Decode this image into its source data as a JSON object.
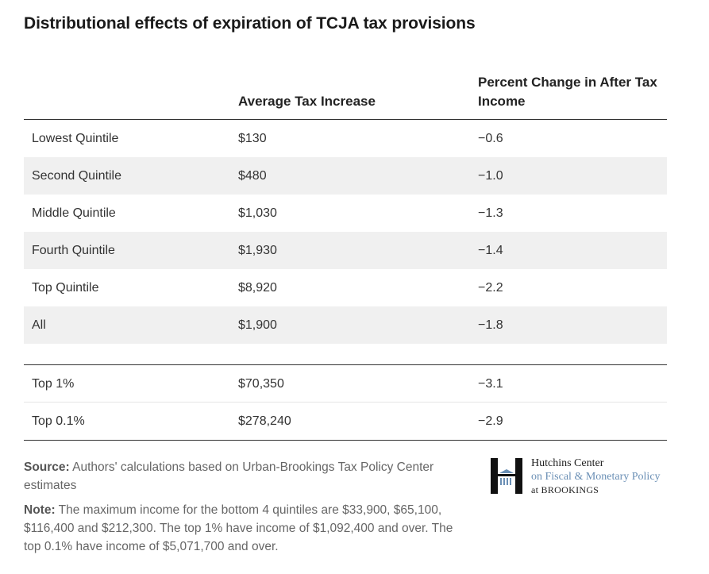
{
  "title": "Distributional effects of expiration of TCJA tax provisions",
  "chart_data": {
    "type": "table",
    "title": "Distributional effects of expiration of TCJA tax provisions",
    "columns": [
      "",
      "Average Tax Increase",
      "Percent Change in After Tax Income"
    ],
    "rows": [
      {
        "group": "Lowest Quintile",
        "avg_tax_increase": "$130",
        "pct_change": "−0.6"
      },
      {
        "group": "Second Quintile",
        "avg_tax_increase": "$480",
        "pct_change": "−1.0"
      },
      {
        "group": "Middle Quintile",
        "avg_tax_increase": "$1,030",
        "pct_change": "−1.3"
      },
      {
        "group": "Fourth Quintile",
        "avg_tax_increase": "$1,930",
        "pct_change": "−1.4"
      },
      {
        "group": "Top Quintile",
        "avg_tax_increase": "$8,920",
        "pct_change": "−2.2"
      },
      {
        "group": "All",
        "avg_tax_increase": "$1,900",
        "pct_change": "−1.8"
      }
    ],
    "rows_top": [
      {
        "group": "Top 1%",
        "avg_tax_increase": "$70,350",
        "pct_change": "−3.1"
      },
      {
        "group": "Top 0.1%",
        "avg_tax_increase": "$278,240",
        "pct_change": "−2.9"
      }
    ]
  },
  "source": {
    "label": "Source:",
    "text": " Authors' calculations based on Urban-Brookings Tax Policy Center estimates"
  },
  "note": {
    "label": "Note:",
    "text": " The maximum income for the bottom 4 quintiles are $33,900, $65,100, $116,400 and $212,300. The top 1% have income of $1,092,400 and over. The top 0.1% have income of $5,071,700 and over."
  },
  "logo": {
    "line1": "Hutchins Center",
    "line2": "on Fiscal & Monetary Policy",
    "line3": "at BROOKINGS",
    "colors": {
      "dark": "#111111",
      "blue": "#6a8fb5"
    }
  }
}
